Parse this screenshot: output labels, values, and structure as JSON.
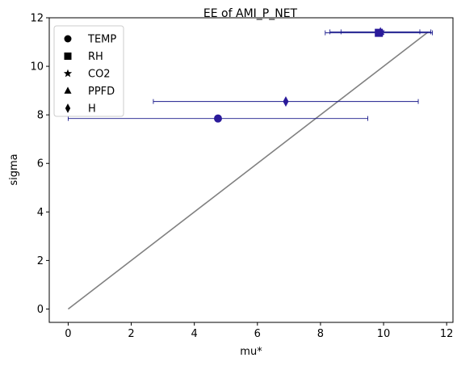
{
  "chart_data": {
    "type": "scatter",
    "title": "EE of AMI_P_NET",
    "xlabel": "mu*",
    "ylabel": "sigma",
    "xlim": [
      -0.6,
      12.2
    ],
    "ylim": [
      -0.55,
      12.0
    ],
    "xticks": [
      0,
      2,
      4,
      6,
      8,
      10,
      12
    ],
    "yticks": [
      0,
      2,
      4,
      6,
      8,
      10,
      12
    ],
    "legend_position": "top-left",
    "marker_color": "#2a1a9a",
    "errorbar_color": "#1a1a8c",
    "reference_line": {
      "x": [
        0,
        11.4
      ],
      "y": [
        0,
        11.4
      ],
      "color": "#808080"
    },
    "series": [
      {
        "name": "TEMP",
        "marker": "circle",
        "mu": 4.75,
        "sigma": 7.85,
        "err": 4.75
      },
      {
        "name": "RH",
        "marker": "square",
        "mu": 9.85,
        "sigma": 11.38,
        "err": 1.7
      },
      {
        "name": "CO2",
        "marker": "star",
        "mu": 9.9,
        "sigma": 11.42,
        "err": 1.25
      },
      {
        "name": "PPFD",
        "marker": "triangle",
        "mu": 9.9,
        "sigma": 11.42,
        "err": 1.6
      },
      {
        "name": "H",
        "marker": "diamond",
        "mu": 6.9,
        "sigma": 8.55,
        "err": 4.2
      }
    ]
  }
}
